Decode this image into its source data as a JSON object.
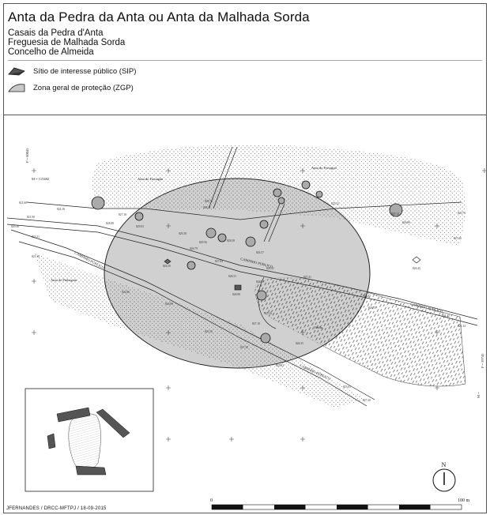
{
  "header": {
    "title": "Anta da Pedra da Anta ou Anta da Malhada Sorda",
    "subtitle_lines": [
      "Casais da Pedra d'Anta",
      "Freguesia de Malhada Sorda",
      "Concelho de Almeida"
    ]
  },
  "legend": {
    "items": [
      {
        "label": "Sítio de interesse público (SIP)",
        "icon": "sip-polygon-icon"
      },
      {
        "label": "Zona geral de proteção (ZGP)",
        "icon": "zgp-area-icon"
      }
    ]
  },
  "map": {
    "labels": {
      "anta_fumagao": "Anta do Fumagão",
      "anta_ferragial": "Anta do Ferragial",
      "anta_pinhagem": "Anta de Pinhagem",
      "caminho_1": "CAMINHO PÚBLICO",
      "caminho_2": "CAMINHO PÚBLICO",
      "caminho_3": "CAMINHO PÚBLICO",
      "caminho_4": "CAMINHO PÚBLICO",
      "vinha": "Vinha",
      "coord_p": "P = 60045",
      "coord_m": "M = 115482",
      "coord_p_right": "P = 59745",
      "coord_m_right": "M ="
    },
    "spot_heights": [
      "821.68",
      "824.18",
      "828.88",
      "827.18",
      "829.03",
      "829.38",
      "829.56",
      "826.79",
      "828.58",
      "826.57",
      "828.11",
      "828.74",
      "828.31",
      "828.53",
      "826.30",
      "827.84",
      "828.41",
      "827.41",
      "828.98",
      "825.16",
      "826.87",
      "821.90",
      "820.30",
      "825.31",
      "821.38",
      "822.86",
      "826.89",
      "823.35",
      "827.38",
      "827.10",
      "826.35",
      "826.17",
      "822.14",
      "821.12",
      "826.45",
      "829.14",
      "826.99",
      "820.73",
      "827.40",
      "825.12",
      "825.83",
      "823.65",
      "827.20"
    ],
    "north_label": "N",
    "scale": {
      "start": "0",
      "end": "100 m"
    }
  },
  "footer": {
    "credit": "JFERNANDES / DRCC-MFTPJ / 18-09-2015"
  },
  "colors": {
    "zgp_fill": "#c8c8c8",
    "sip_fill": "#555555",
    "line": "#222222"
  }
}
